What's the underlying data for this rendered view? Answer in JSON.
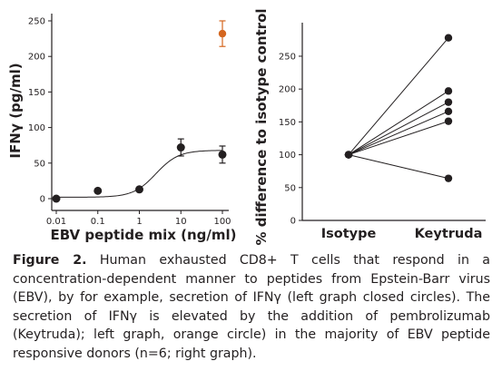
{
  "figure": {
    "caption_label": "Figure 2.",
    "caption_text": "Human exhausted CD8+ T cells that respond in a concentration-dependent manner to peptides from Epstein-Barr virus (EBV), by for example, secretion of IFNγ (left graph closed circles). The secretion of IFNγ is elevated by the addition of pembrolizumab (Keytruda); left graph, orange circle) in the majority of EBV peptide responsive donors (n=6; right graph)."
  },
  "colors": {
    "ink": "#231f20",
    "accent": "#d4661f"
  },
  "chart_data": [
    {
      "type": "scatter",
      "xlabel": "EBV peptide mix (ng/ml)",
      "ylabel": "IFNγ (pg/ml)",
      "x_scale": "log",
      "x_ticks": [
        "0.01",
        "0.1",
        "1",
        "10",
        "100"
      ],
      "y_ticks": [
        "0",
        "50",
        "100",
        "150",
        "200",
        "250"
      ],
      "xlim": [
        0.01,
        100
      ],
      "ylim": [
        0,
        250
      ],
      "series": [
        {
          "marker": "closed-circle",
          "color": "#231f20",
          "points": [
            {
              "x": 0.01,
              "y": 0,
              "err": 0
            },
            {
              "x": 0.1,
              "y": 11,
              "err": 0
            },
            {
              "x": 1,
              "y": 13,
              "err": 0
            },
            {
              "x": 10,
              "y": 72,
              "err": 12
            },
            {
              "x": 100,
              "y": 62,
              "err": 12
            }
          ],
          "fit": "sigmoidal"
        },
        {
          "marker": "closed-circle",
          "color": "#d4661f",
          "points": [
            {
              "x": 100,
              "y": 232,
              "err": 18
            }
          ]
        }
      ]
    },
    {
      "type": "line",
      "ylabel": "% difference to isotype control",
      "categories": [
        "Isotype",
        "Keytruda"
      ],
      "y_ticks": [
        "0",
        "50",
        "100",
        "150",
        "200",
        "250"
      ],
      "ylim": [
        0,
        290
      ],
      "paired_values": [
        [
          100,
          278
        ],
        [
          100,
          197
        ],
        [
          100,
          180
        ],
        [
          100,
          166
        ],
        [
          100,
          151
        ],
        [
          100,
          64
        ]
      ]
    }
  ]
}
